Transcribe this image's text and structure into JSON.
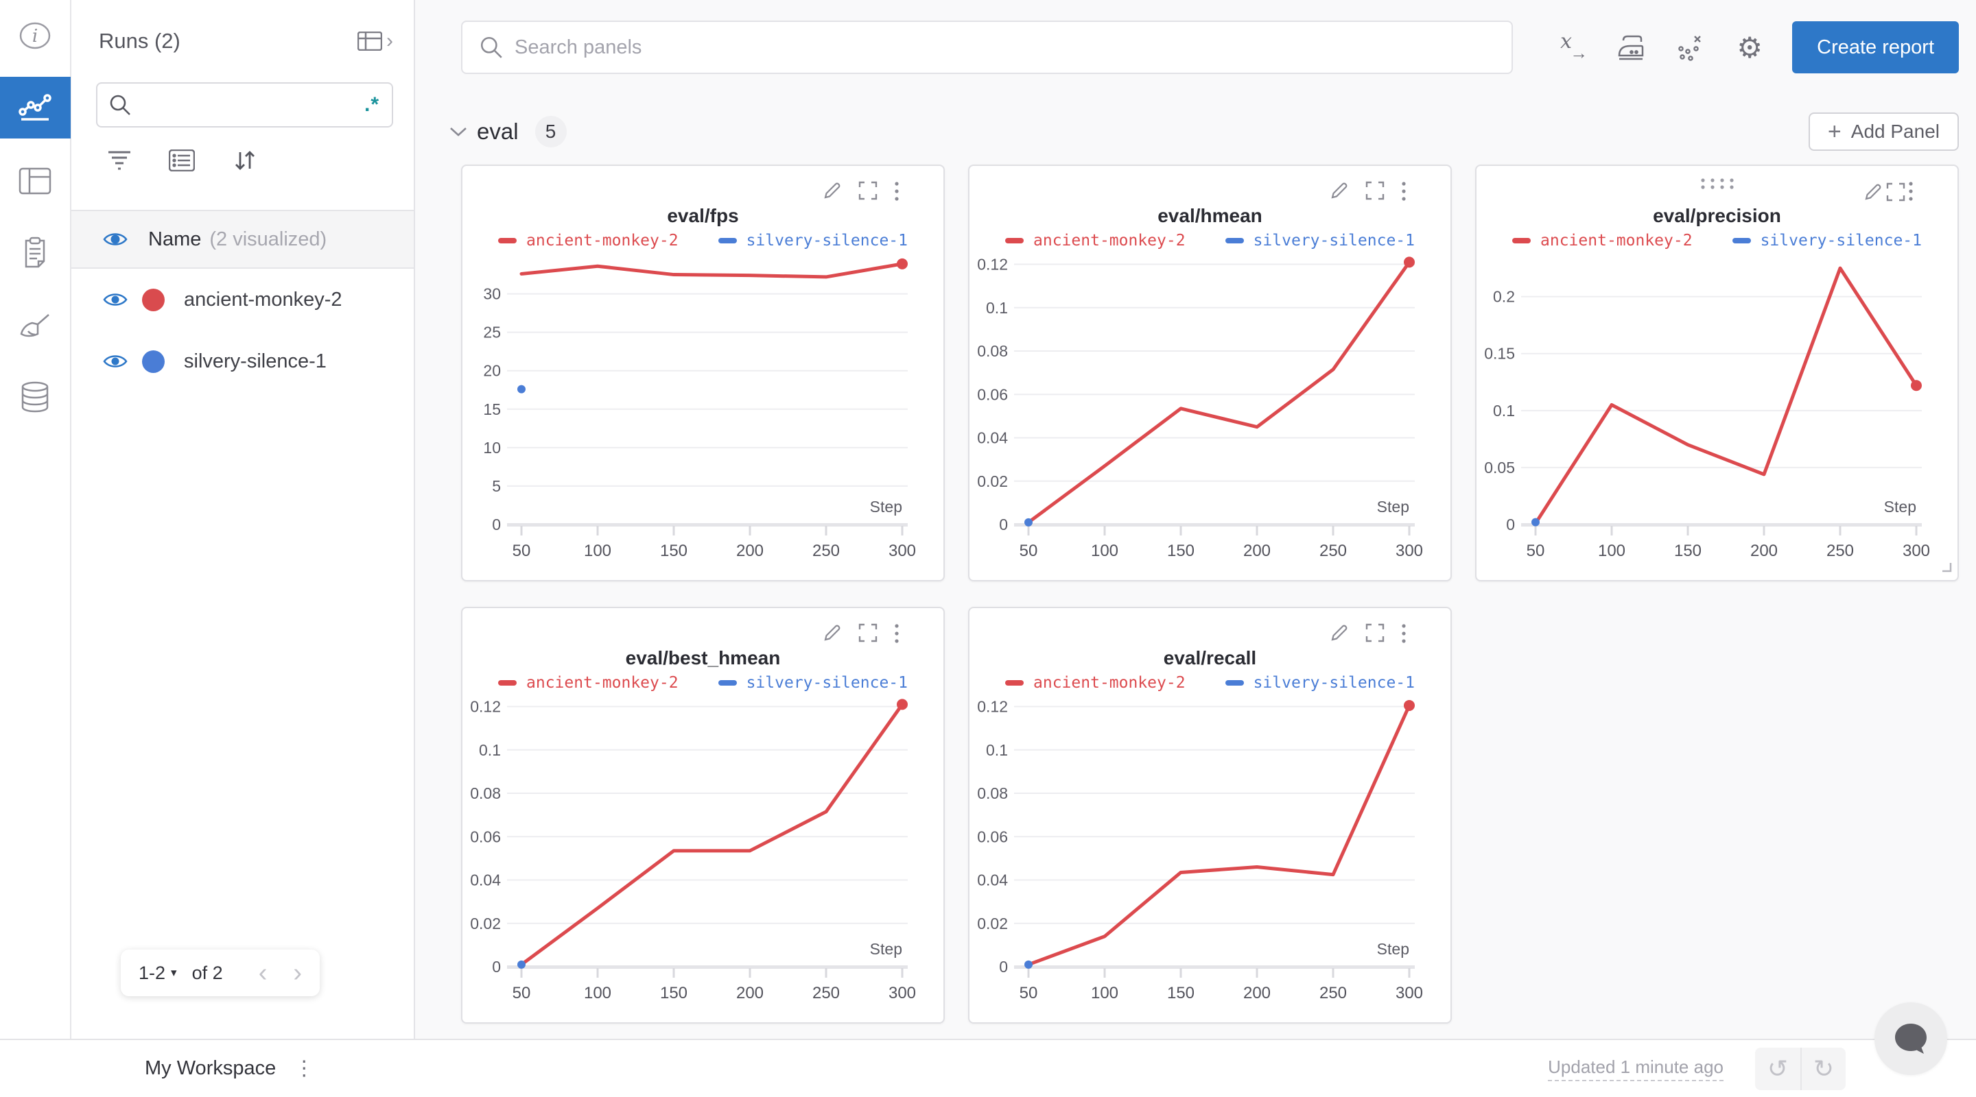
{
  "accent_blue": "#2e78c8",
  "teal_accent": "#1a939c",
  "icon_names": [
    "info-icon",
    "line-chart-icon",
    "table-icon",
    "clipboard-icon",
    "broom-icon",
    "database-icon",
    "table-expand-icon",
    "search-icon",
    "regex-toggle",
    "filter-icon",
    "list-settings-icon",
    "sort-icon",
    "eye-icon",
    "x-axis-icon",
    "smoothing-icon",
    "outliers-icon",
    "settings-gear-icon",
    "plus-icon",
    "chevron-down-icon",
    "drag-handle-icon",
    "edit-pencil-icon",
    "fullscreen-icon",
    "kebab-menu-icon",
    "resize-handle-icon",
    "undo-icon",
    "redo-icon",
    "chat-bubble-icon"
  ],
  "sidebar": {
    "title": "Runs (2)",
    "search": {
      "placeholder": "",
      "regex_label": ".*"
    },
    "header_row": {
      "label": "Name",
      "sublabel": "(2 visualized)"
    },
    "runs": [
      {
        "name": "ancient-monkey-2",
        "color": "#d94b4e"
      },
      {
        "name": "silvery-silence-1",
        "color": "#4a7dd6"
      }
    ],
    "pagination": {
      "range": "1-2",
      "caret": "▾",
      "of": "of 2",
      "prev": "‹",
      "next": "›"
    }
  },
  "topbar": {
    "search_placeholder": "Search panels",
    "gear_glyph": "⚙",
    "x_axis_glyph": "x",
    "x_axis_arrow": "→",
    "create_report_label": "Create report"
  },
  "section": {
    "name": "eval",
    "count": "5",
    "add_panel_label": "Add Panel",
    "plus": "+"
  },
  "footer": {
    "workspace_label": "My Workspace",
    "kebab": "⋮",
    "updated_label": "Updated 1 minute ago",
    "undo_glyph": "↺",
    "redo_glyph": "↻"
  },
  "chart_data": [
    {
      "type": "line",
      "title": "eval/fps",
      "xlabel": "Step",
      "x": [
        50,
        100,
        150,
        200,
        250,
        300
      ],
      "xlim": [
        50,
        300
      ],
      "ylim": [
        0,
        34.6
      ],
      "yticks": [
        0,
        5,
        10,
        15,
        20,
        25,
        30
      ],
      "ytick_labels": [
        "0",
        "5",
        "10",
        "15",
        "20",
        "25",
        "30"
      ],
      "grid": "horizontal",
      "legend_position": "top",
      "series": [
        {
          "name": "ancient-monkey-2",
          "color": "#dc4a4e",
          "x": [
            50,
            100,
            150,
            200,
            250,
            300
          ],
          "y": [
            32.6,
            33.6,
            32.5,
            32.4,
            32.2,
            33.9
          ],
          "end_dot": true
        },
        {
          "name": "silvery-silence-1",
          "color": "#4a7dd6",
          "x": [
            50
          ],
          "y": [
            17.6
          ],
          "point_only": true
        }
      ]
    },
    {
      "type": "line",
      "title": "eval/hmean",
      "xlabel": "Step",
      "x": [
        50,
        100,
        150,
        200,
        250,
        300
      ],
      "xlim": [
        50,
        300
      ],
      "ylim": [
        0,
        0.1227
      ],
      "yticks": [
        0,
        0.02,
        0.04,
        0.06,
        0.08,
        0.1,
        0.12
      ],
      "ytick_labels": [
        "0",
        "0.02",
        "0.04",
        "0.06",
        "0.08",
        "0.1",
        "0.12"
      ],
      "grid": "horizontal",
      "legend_position": "top",
      "series": [
        {
          "name": "ancient-monkey-2",
          "color": "#dc4a4e",
          "x": [
            50,
            100,
            150,
            200,
            250,
            300
          ],
          "y": [
            0.001,
            0.027,
            0.0535,
            0.045,
            0.0715,
            0.121
          ],
          "end_dot": true
        },
        {
          "name": "silvery-silence-1",
          "color": "#4a7dd6",
          "x": [
            50
          ],
          "y": [
            0.001
          ],
          "point_only": true
        }
      ]
    },
    {
      "type": "line",
      "title": "eval/precision",
      "xlabel": "Step",
      "x": [
        50,
        100,
        150,
        200,
        250,
        300
      ],
      "xlim": [
        50,
        300
      ],
      "ylim": [
        0,
        0.2335
      ],
      "yticks": [
        0,
        0.05,
        0.1,
        0.15,
        0.2
      ],
      "ytick_labels": [
        "0",
        "0.05",
        "0.1",
        "0.15",
        "0.2"
      ],
      "grid": "horizontal",
      "legend_position": "top",
      "hover_controls": [
        "drag-handle",
        "edit",
        "fullscreen",
        "kebab-menu",
        "resize-handle"
      ],
      "series": [
        {
          "name": "ancient-monkey-2",
          "color": "#dc4a4e",
          "x": [
            50,
            100,
            150,
            200,
            250,
            300
          ],
          "y": [
            0.001,
            0.105,
            0.07,
            0.044,
            0.225,
            0.122
          ],
          "end_dot": true
        },
        {
          "name": "silvery-silence-1",
          "color": "#4a7dd6",
          "x": [
            50
          ],
          "y": [
            0.002
          ],
          "point_only": true
        }
      ]
    },
    {
      "type": "line",
      "title": "eval/best_hmean",
      "xlabel": "Step",
      "x": [
        50,
        100,
        150,
        200,
        250,
        300
      ],
      "xlim": [
        50,
        300
      ],
      "ylim": [
        0,
        0.1227
      ],
      "yticks": [
        0,
        0.02,
        0.04,
        0.06,
        0.08,
        0.1,
        0.12
      ],
      "ytick_labels": [
        "0",
        "0.02",
        "0.04",
        "0.06",
        "0.08",
        "0.1",
        "0.12"
      ],
      "grid": "horizontal",
      "legend_position": "top",
      "series": [
        {
          "name": "ancient-monkey-2",
          "color": "#dc4a4e",
          "x": [
            50,
            100,
            150,
            200,
            250,
            300
          ],
          "y": [
            0.001,
            0.027,
            0.0535,
            0.0535,
            0.0715,
            0.121
          ],
          "end_dot": true
        },
        {
          "name": "silvery-silence-1",
          "color": "#4a7dd6",
          "x": [
            50
          ],
          "y": [
            0.001
          ],
          "point_only": true
        }
      ]
    },
    {
      "type": "line",
      "title": "eval/recall",
      "xlabel": "Step",
      "x": [
        50,
        100,
        150,
        200,
        250,
        300
      ],
      "xlim": [
        50,
        300
      ],
      "ylim": [
        0,
        0.1227
      ],
      "yticks": [
        0,
        0.02,
        0.04,
        0.06,
        0.08,
        0.1,
        0.12
      ],
      "ytick_labels": [
        "0",
        "0.02",
        "0.04",
        "0.06",
        "0.08",
        "0.1",
        "0.12"
      ],
      "grid": "horizontal",
      "legend_position": "top",
      "series": [
        {
          "name": "ancient-monkey-2",
          "color": "#dc4a4e",
          "x": [
            50,
            100,
            150,
            200,
            250,
            300
          ],
          "y": [
            0.001,
            0.014,
            0.0435,
            0.046,
            0.0425,
            0.1205
          ],
          "end_dot": true
        },
        {
          "name": "silvery-silence-1",
          "color": "#4a7dd6",
          "x": [
            50
          ],
          "y": [
            0.001
          ],
          "point_only": true
        }
      ]
    }
  ]
}
